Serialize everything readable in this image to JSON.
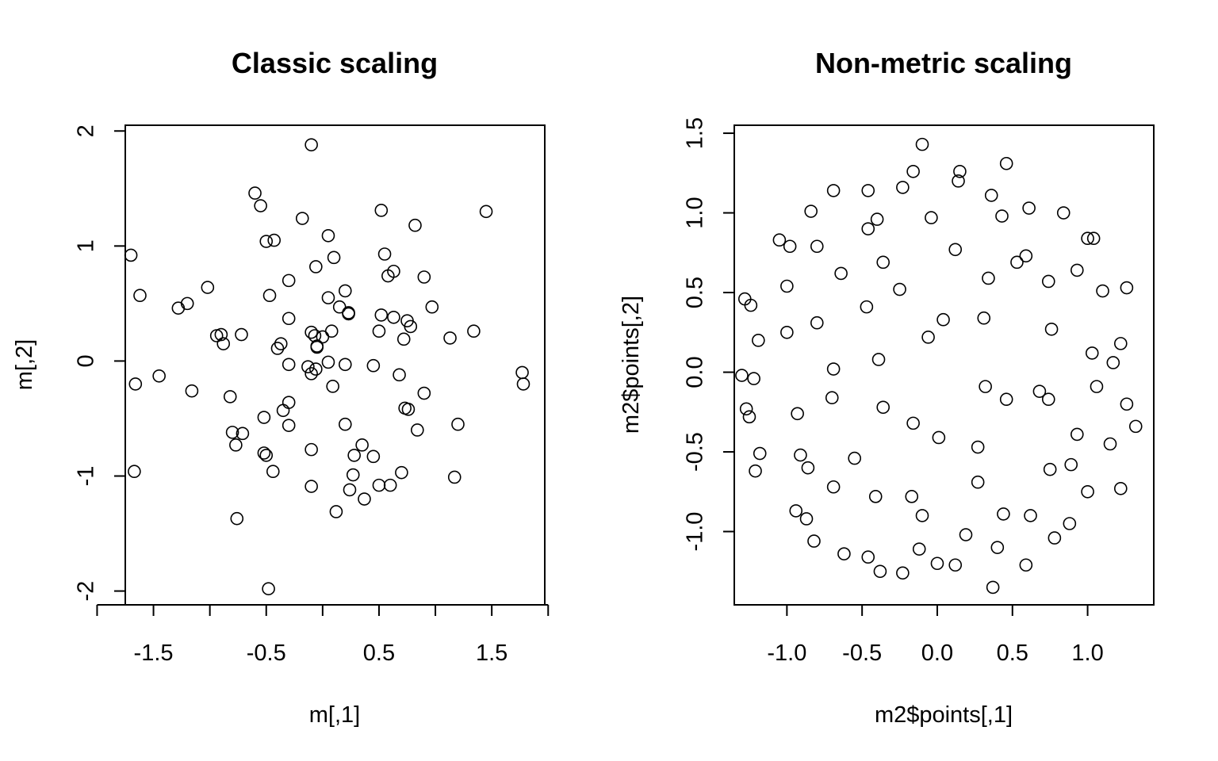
{
  "chart_data": [
    {
      "type": "scatter",
      "title": "Classic scaling",
      "xlabel": "m[,1]",
      "ylabel": "m[,2]",
      "xlim": [
        -1.75,
        1.97
      ],
      "ylim": [
        -2.12,
        2.05
      ],
      "xticks": [
        -2,
        -1.5,
        -1,
        -0.5,
        0,
        0.5,
        1,
        1.5,
        2
      ],
      "xtick_labels": [
        "",
        "-1.5",
        "",
        "-0.5",
        "",
        "0.5",
        "",
        "1.5",
        ""
      ],
      "yticks": [
        -2,
        -1,
        0,
        1,
        2
      ],
      "ytick_labels": [
        "-2",
        "-1",
        "0",
        "1",
        "2"
      ],
      "grid": false,
      "x": [
        -0.1,
        -0.6,
        -0.55,
        -0.18,
        1.45,
        0.52,
        0.82,
        -0.5,
        -0.43,
        0.05,
        0.1,
        -0.06,
        0.55,
        0.63,
        0.58,
        0.9,
        -1.7,
        -1.62,
        -1.02,
        -1.2,
        -1.28,
        -0.3,
        0.2,
        0.05,
        0.15,
        0.97,
        0.23,
        0.52,
        0.63,
        0.75,
        -0.47,
        0.23,
        0.78,
        -0.3,
        0.5,
        -0.1,
        0.08,
        1.34,
        1.13,
        0.72,
        -0.9,
        -0.94,
        -0.72,
        -0.88,
        -0.37,
        -0.4,
        -0.05,
        -0.07,
        -0.05,
        0,
        -0.3,
        0.2,
        0.05,
        -0.13,
        -0.1,
        -0.06,
        0.45,
        0.68,
        1.77,
        1.78,
        -1.45,
        -1.66,
        -1.16,
        0.09,
        -0.82,
        -0.3,
        -0.35,
        0.76,
        0.73,
        0.9,
        -0.52,
        0.2,
        -0.3,
        -0.8,
        1.2,
        -0.71,
        -0.77,
        -0.52,
        -0.5,
        0.35,
        0.84,
        -0.1,
        0.28,
        0.45,
        -1.67,
        -0.44,
        0.27,
        1.17,
        -0.1,
        0.5,
        0.6,
        0.7,
        0.24,
        0.12,
        0.37,
        -0.76,
        -0.48
      ],
      "y": [
        1.88,
        1.46,
        1.35,
        1.24,
        1.3,
        1.31,
        1.18,
        1.04,
        1.05,
        1.09,
        0.9,
        0.82,
        0.93,
        0.78,
        0.74,
        0.73,
        0.92,
        0.57,
        0.64,
        0.5,
        0.46,
        0.7,
        0.61,
        0.55,
        0.47,
        0.47,
        0.41,
        0.4,
        0.38,
        0.35,
        0.57,
        0.42,
        0.3,
        0.37,
        0.26,
        0.25,
        0.26,
        0.26,
        0.2,
        0.19,
        0.23,
        0.22,
        0.23,
        0.15,
        0.15,
        0.11,
        0.13,
        0.22,
        0.12,
        0.21,
        -0.03,
        -0.03,
        -0.01,
        -0.05,
        -0.11,
        -0.07,
        -0.04,
        -0.12,
        -0.1,
        -0.2,
        -0.13,
        -0.2,
        -0.26,
        -0.22,
        -0.31,
        -0.36,
        -0.43,
        -0.42,
        -0.41,
        -0.28,
        -0.49,
        -0.55,
        -0.56,
        -0.62,
        -0.55,
        -0.63,
        -0.73,
        -0.8,
        -0.82,
        -0.73,
        -0.6,
        -0.77,
        -0.82,
        -0.83,
        -0.96,
        -0.96,
        -0.99,
        -1.01,
        -1.09,
        -1.08,
        -1.08,
        -0.97,
        -1.12,
        -1.31,
        -1.2,
        -1.37,
        -1.98
      ]
    },
    {
      "type": "scatter",
      "title": "Non-metric scaling",
      "xlabel": "m2$points[,1]",
      "ylabel": "m2$points[,2]",
      "xlim": [
        -1.35,
        1.44
      ],
      "ylim": [
        -1.46,
        1.55
      ],
      "xticks": [
        -1.0,
        -0.5,
        0.0,
        0.5,
        1.0
      ],
      "xtick_labels": [
        "-1.0",
        "-0.5",
        "0.0",
        "0.5",
        "1.0"
      ],
      "yticks": [
        -1.0,
        -0.5,
        0.0,
        0.5,
        1.0,
        1.5
      ],
      "ytick_labels": [
        "-1.0",
        "-0.5",
        "0.0",
        "0.5",
        "1.0",
        "1.5"
      ],
      "grid": false,
      "x": [
        -0.1,
        0.46,
        -0.16,
        0.15,
        0.14,
        -0.23,
        -0.69,
        -0.46,
        0.36,
        -0.04,
        -0.84,
        -0.4,
        -0.46,
        0.43,
        0.61,
        0.84,
        1.0,
        1.04,
        -1.05,
        -0.98,
        -0.8,
        0.12,
        0.59,
        0.53,
        -0.36,
        -0.64,
        0.34,
        0.93,
        -1.0,
        -0.25,
        0.74,
        1.26,
        1.1,
        -1.28,
        -1.24,
        -0.47,
        0.31,
        0.04,
        -0.8,
        -1.0,
        0.76,
        -0.06,
        -1.19,
        1.22,
        1.03,
        -0.39,
        1.17,
        -0.69,
        -1.3,
        -1.22,
        0.32,
        0.68,
        1.06,
        -0.7,
        0.46,
        0.74,
        1.26,
        -1.27,
        -0.36,
        -1.25,
        -0.93,
        -0.16,
        0.01,
        0.93,
        1.32,
        1.15,
        -0.55,
        0.27,
        -1.18,
        -0.91,
        -0.86,
        -1.21,
        0.89,
        0.75,
        0.27,
        -0.69,
        1.0,
        1.22,
        -0.41,
        -0.17,
        -0.94,
        0.44,
        -0.87,
        -0.1,
        0.62,
        0.88,
        0.19,
        0.78,
        -0.82,
        0.4,
        -0.12,
        -0.62,
        -0.46,
        0.0,
        0.12,
        0.59,
        -0.38,
        -0.23,
        0.37
      ],
      "y": [
        1.43,
        1.31,
        1.26,
        1.26,
        1.2,
        1.16,
        1.14,
        1.14,
        1.11,
        0.97,
        1.01,
        0.96,
        0.9,
        0.98,
        1.03,
        1.0,
        0.84,
        0.84,
        0.83,
        0.79,
        0.79,
        0.77,
        0.73,
        0.69,
        0.69,
        0.62,
        0.59,
        0.64,
        0.54,
        0.52,
        0.57,
        0.53,
        0.51,
        0.46,
        0.42,
        0.41,
        0.34,
        0.33,
        0.31,
        0.25,
        0.27,
        0.22,
        0.2,
        0.18,
        0.12,
        0.08,
        0.06,
        0.02,
        -0.02,
        -0.04,
        -0.09,
        -0.12,
        -0.09,
        -0.16,
        -0.17,
        -0.17,
        -0.2,
        -0.23,
        -0.22,
        -0.28,
        -0.26,
        -0.32,
        -0.41,
        -0.39,
        -0.34,
        -0.45,
        -0.54,
        -0.47,
        -0.51,
        -0.52,
        -0.6,
        -0.62,
        -0.58,
        -0.61,
        -0.69,
        -0.72,
        -0.75,
        -0.73,
        -0.78,
        -0.78,
        -0.87,
        -0.89,
        -0.92,
        -0.9,
        -0.9,
        -0.95,
        -1.02,
        -1.04,
        -1.06,
        -1.1,
        -1.11,
        -1.14,
        -1.16,
        -1.2,
        -1.21,
        -1.21,
        -1.25,
        -1.26,
        -1.35
      ]
    }
  ]
}
